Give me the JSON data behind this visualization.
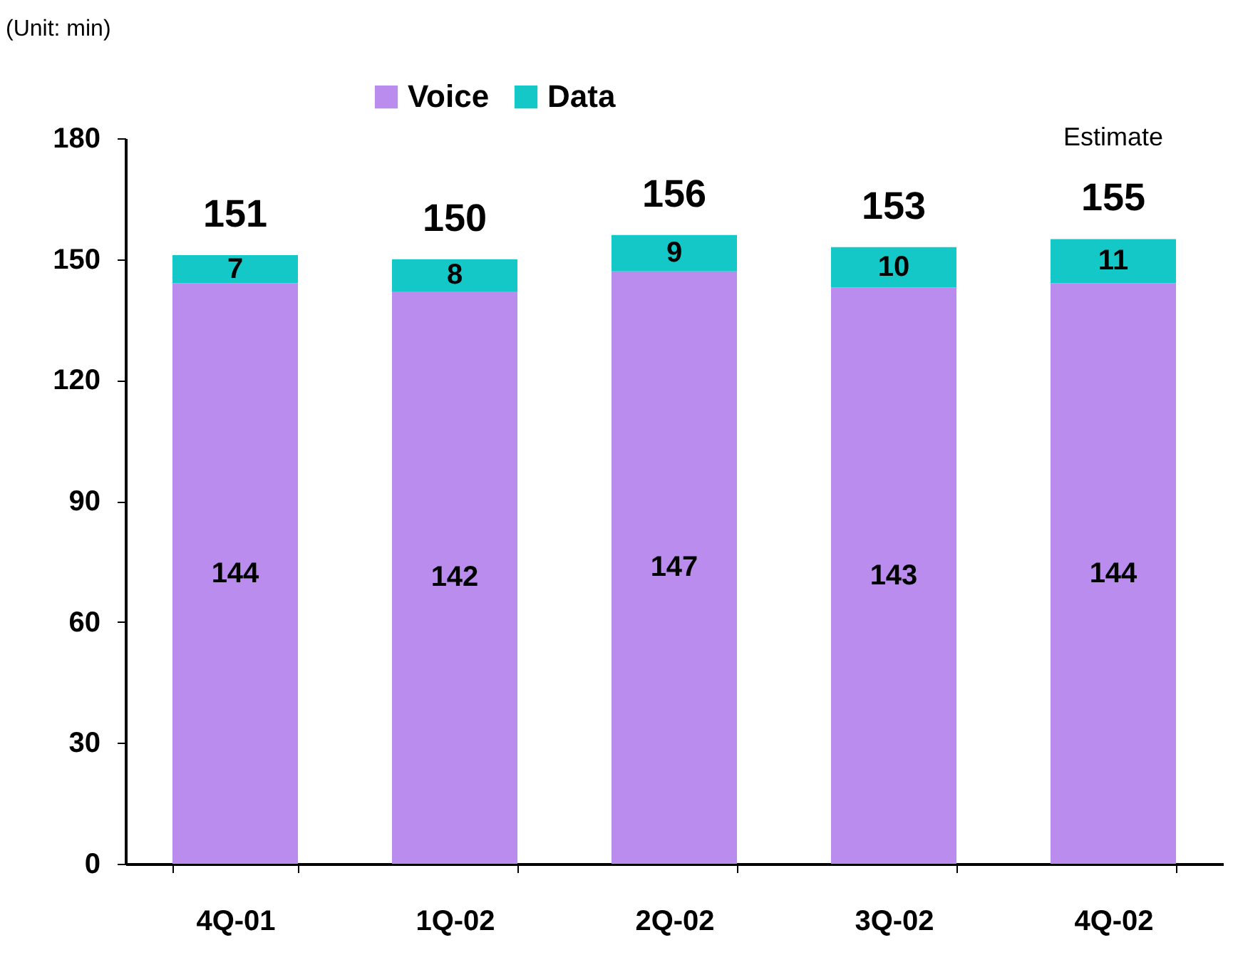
{
  "chart_data": {
    "type": "bar",
    "stacked": true,
    "categories": [
      "4Q-01",
      "1Q-02",
      "2Q-02",
      "3Q-02",
      "4Q-02"
    ],
    "series": [
      {
        "name": "Voice",
        "color": "#b98cee",
        "values": [
          144,
          142,
          147,
          143,
          144
        ]
      },
      {
        "name": "Data",
        "color": "#14c8c8",
        "values": [
          7,
          8,
          9,
          10,
          11
        ]
      }
    ],
    "ylim": [
      0,
      180
    ],
    "yticks": [
      0,
      30,
      60,
      90,
      120,
      150,
      180
    ],
    "data_labels": true,
    "totals": [
      "151",
      "150",
      "156",
      "153",
      "155"
    ],
    "legend": "top",
    "grid": false,
    "annotations": [
      "(Unit: min)",
      "Estimate"
    ]
  }
}
